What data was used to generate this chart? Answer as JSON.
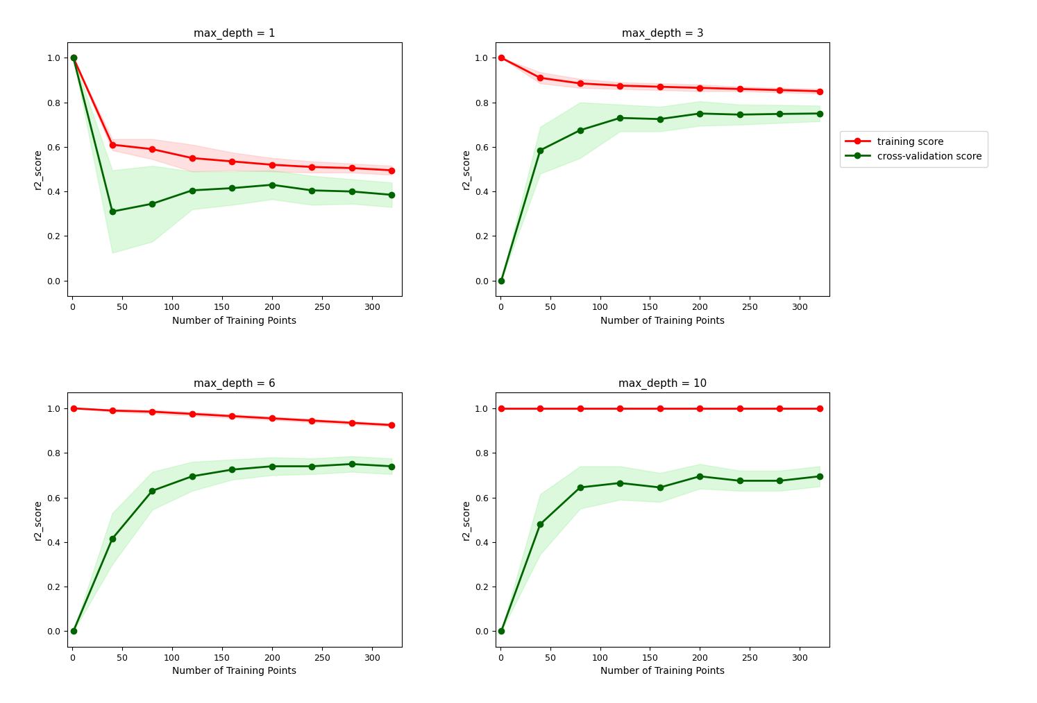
{
  "subplots": [
    {
      "title": "max_depth = 1",
      "x": [
        1,
        40,
        80,
        120,
        160,
        200,
        240,
        280,
        320
      ],
      "train_mean": [
        1.0,
        0.61,
        0.59,
        0.55,
        0.535,
        0.52,
        0.51,
        0.505,
        0.495
      ],
      "train_std": [
        0.0,
        0.025,
        0.045,
        0.06,
        0.04,
        0.03,
        0.025,
        0.02,
        0.02
      ],
      "test_mean": [
        1.0,
        0.31,
        0.345,
        0.405,
        0.415,
        0.43,
        0.405,
        0.4,
        0.385
      ],
      "test_std": [
        0.0,
        0.185,
        0.17,
        0.085,
        0.075,
        0.065,
        0.065,
        0.055,
        0.055
      ]
    },
    {
      "title": "max_depth = 3",
      "x": [
        1,
        40,
        80,
        120,
        160,
        200,
        240,
        280,
        320
      ],
      "train_mean": [
        1.0,
        0.91,
        0.885,
        0.875,
        0.87,
        0.865,
        0.86,
        0.855,
        0.85
      ],
      "train_std": [
        0.0,
        0.025,
        0.02,
        0.015,
        0.015,
        0.015,
        0.01,
        0.01,
        0.01
      ],
      "test_mean": [
        0.0,
        0.585,
        0.675,
        0.73,
        0.725,
        0.75,
        0.745,
        0.748,
        0.75
      ],
      "test_std": [
        0.0,
        0.105,
        0.125,
        0.06,
        0.055,
        0.055,
        0.045,
        0.04,
        0.035
      ]
    },
    {
      "title": "max_depth = 6",
      "x": [
        1,
        40,
        80,
        120,
        160,
        200,
        240,
        280,
        320
      ],
      "train_mean": [
        1.0,
        0.99,
        0.985,
        0.975,
        0.965,
        0.955,
        0.945,
        0.935,
        0.925
      ],
      "train_std": [
        0.0,
        0.005,
        0.008,
        0.008,
        0.008,
        0.007,
        0.007,
        0.007,
        0.006
      ],
      "test_mean": [
        0.0,
        0.415,
        0.63,
        0.695,
        0.725,
        0.74,
        0.74,
        0.75,
        0.74
      ],
      "test_std": [
        0.0,
        0.115,
        0.085,
        0.065,
        0.045,
        0.04,
        0.035,
        0.035,
        0.035
      ]
    },
    {
      "title": "max_depth = 10",
      "x": [
        1,
        40,
        80,
        120,
        160,
        200,
        240,
        280,
        320
      ],
      "train_mean": [
        1.0,
        1.0,
        1.0,
        1.0,
        1.0,
        1.0,
        1.0,
        1.0,
        1.0
      ],
      "train_std": [
        0.0,
        0.0,
        0.0,
        0.0,
        0.0,
        0.0,
        0.0,
        0.0,
        0.0
      ],
      "test_mean": [
        0.0,
        0.48,
        0.645,
        0.665,
        0.645,
        0.695,
        0.675,
        0.675,
        0.695
      ],
      "test_std": [
        0.0,
        0.135,
        0.095,
        0.075,
        0.065,
        0.055,
        0.045,
        0.045,
        0.045
      ]
    }
  ],
  "xlabel": "Number of Training Points",
  "ylabel": "r2_score",
  "train_color": "#FF0000",
  "test_color": "#006400",
  "train_fill_color": "#FF9999",
  "test_fill_color": "#90EE90",
  "train_label": "training score",
  "test_label": "cross-validation score",
  "ylim": [
    -0.07,
    1.07
  ],
  "yticks": [
    0.0,
    0.2,
    0.4,
    0.6,
    0.8,
    1.0
  ],
  "xticks": [
    0,
    50,
    100,
    150,
    200,
    250,
    300
  ],
  "xlim": [
    -5,
    330
  ],
  "marker": "o",
  "markersize": 6,
  "linewidth": 2,
  "fill_alpha": 0.3
}
